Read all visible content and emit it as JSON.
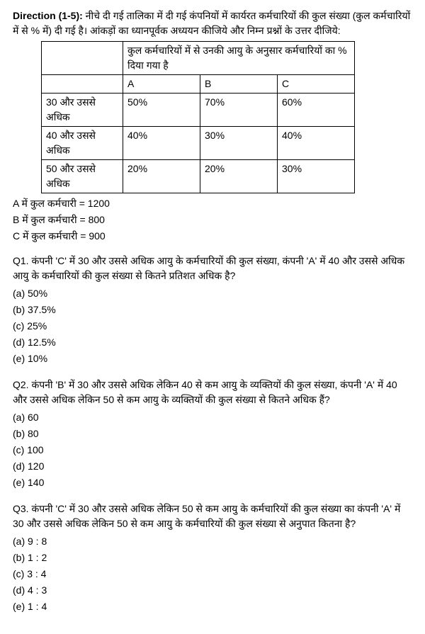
{
  "direction": {
    "label": "Direction (1-5):",
    "text": " नीचे दी गई तालिका में दी गई कंपनियों में कार्यरत कर्मचारियों की कुल संख्या (कुल कर्मचारियों में से % में) दी गई है। आंकड़ों का ध्यानपूर्वक अध्ययन कीजिये और निम्न प्रश्नों के उत्तर दीजिये:"
  },
  "table": {
    "header": "कुल कर्मचारियों में से उनकी आयु के अनुसार कर्मचारियों का % दिया गया है",
    "cols": {
      "a": "A",
      "b": "B",
      "c": "C"
    },
    "rows": [
      {
        "label": "30 और उससे अधिक",
        "a": "50%",
        "b": "70%",
        "c": "60%"
      },
      {
        "label": "40 और उससे अधिक",
        "a": "40%",
        "b": "30%",
        "c": "40%"
      },
      {
        "label": "50 और उससे अधिक",
        "a": "20%",
        "b": "20%",
        "c": "30%"
      }
    ]
  },
  "totals": {
    "a": "A में कुल कर्मचारी = 1200",
    "b": "B  में कुल कर्मचारी = 800",
    "c": "C में कुल कर्मचारी = 900"
  },
  "q1": {
    "text": "Q1.  कंपनी 'C' में 30 और उससे अधिक आयु के कर्मचारियों की कुल संख्या, कंपनी 'A' में 40 और उससे अधिक आयु के कर्मचारियों की कुल संख्या से कितने प्रतिशत अधिक है?",
    "opts": {
      "a": "(a) 50%",
      "b": "(b) 37.5%",
      "c": "(c) 25%",
      "d": "(d) 12.5%",
      "e": "(e) 10%"
    }
  },
  "q2": {
    "text": "Q2. कंपनी 'B' में 30 और उससे अधिक लेकिन 40 से कम आयु के व्यक्तियों की कुल संख्या, कंपनी 'A' में 40 और उससे अधिक लेकिन 50 से कम आयु के व्यक्तियों की कुल संख्या से कितने अधिक हैं?",
    "opts": {
      "a": "(a) 60",
      "b": "(b) 80",
      "c": "(c) 100",
      "d": "(d) 120",
      "e": "(e) 140"
    }
  },
  "q3": {
    "text": "Q3. कंपनी 'C' में 30 और उससे अधिक लेकिन 50 से कम आयु के कर्मचारियों की कुल संख्या का कंपनी 'A' में 30 और उससे अधिक लेकिन 50 से कम आयु के कर्मचारियों की कुल संख्या से अनुपात कितना है?",
    "opts": {
      "a": "(a) 9 : 8",
      "b": "(b) 1 : 2",
      "c": "(c) 3 : 4",
      "d": "(d) 4 : 3",
      "e": "(e) 1 : 4"
    }
  }
}
